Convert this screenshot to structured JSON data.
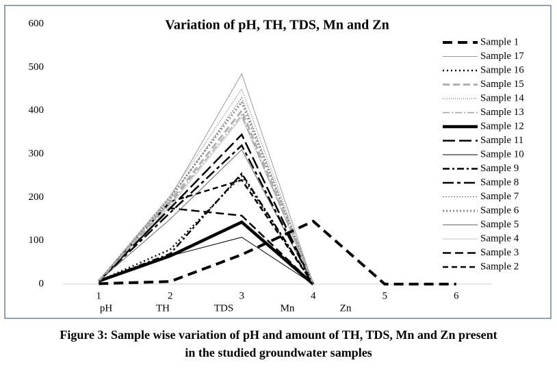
{
  "chart_data": {
    "type": "line",
    "title": "Variation of pH, TH, TDS, Mn and Zn",
    "categories": [
      "1",
      "2",
      "3",
      "4",
      "5",
      "6"
    ],
    "secondary_labels": [
      "pH",
      "TH",
      "TDS",
      "Mn",
      "Zn"
    ],
    "ylim": [
      0,
      600
    ],
    "yticks": [
      0,
      100,
      200,
      300,
      400,
      500,
      600
    ],
    "caption": [
      "Figure 3: Sample wise variation of pH and amount of TH, TDS, Mn and Zn present",
      "in the studied groundwater samples"
    ],
    "series": [
      {
        "name": "Sample 1",
        "color": "#000000",
        "width": 4,
        "dash": "14 8",
        "values": [
          1,
          6,
          68,
          145,
          0,
          0
        ]
      },
      {
        "name": "Sample 17",
        "color": "#999999",
        "width": 1,
        "dash": "",
        "values": [
          7,
          200,
          485,
          0,
          null,
          null
        ]
      },
      {
        "name": "Sample 16",
        "color": "#000000",
        "width": 2.5,
        "dash": "2 4",
        "values": [
          7,
          80,
          250,
          0,
          null,
          null
        ]
      },
      {
        "name": "Sample 15",
        "color": "#b0b0b0",
        "width": 3,
        "dash": "10 5",
        "values": [
          7,
          190,
          400,
          0,
          null,
          null
        ]
      },
      {
        "name": "Sample 14",
        "color": "#555555",
        "width": 1,
        "dash": "1 2",
        "values": [
          7,
          205,
          450,
          0,
          null,
          null
        ]
      },
      {
        "name": "Sample 13",
        "color": "#a0a0a0",
        "width": 1.5,
        "dash": "10 3 2 3",
        "values": [
          7,
          185,
          390,
          0,
          null,
          null
        ]
      },
      {
        "name": "Sample 12",
        "color": "#000000",
        "width": 4.5,
        "dash": "",
        "values": [
          7,
          65,
          143,
          0,
          null,
          null
        ]
      },
      {
        "name": "Sample 11",
        "color": "#000000",
        "width": 2.5,
        "dash": "18 6",
        "values": [
          7,
          175,
          345,
          0,
          null,
          null
        ]
      },
      {
        "name": "Sample 10",
        "color": "#000000",
        "width": 1,
        "dash": "",
        "values": [
          7,
          65,
          108,
          0,
          null,
          null
        ]
      },
      {
        "name": "Sample 9",
        "color": "#000000",
        "width": 2.5,
        "dash": "10 4 3 4",
        "values": [
          7,
          70,
          255,
          0,
          null,
          null
        ]
      },
      {
        "name": "Sample 8",
        "color": "#000000",
        "width": 2.5,
        "dash": "16 5 5 5",
        "values": [
          7,
          165,
          320,
          0,
          null,
          null
        ]
      },
      {
        "name": "Sample 7",
        "color": "#666666",
        "width": 1,
        "dash": "2 2",
        "values": [
          7,
          195,
          430,
          0,
          null,
          null
        ]
      },
      {
        "name": "Sample 6",
        "color": "#888888",
        "width": 3,
        "dash": "2 3",
        "values": [
          7,
          200,
          420,
          0,
          null,
          null
        ]
      },
      {
        "name": "Sample 5",
        "color": "#666666",
        "width": 1,
        "dash": "",
        "values": [
          7,
          150,
          310,
          0,
          null,
          null
        ]
      },
      {
        "name": "Sample 4",
        "color": "#c0c0c0",
        "width": 1,
        "dash": "",
        "values": [
          7,
          180,
          385,
          0,
          null,
          null
        ]
      },
      {
        "name": "Sample 3",
        "color": "#000000",
        "width": 2.5,
        "dash": "12 6",
        "values": [
          7,
          175,
          158,
          0,
          null,
          null
        ]
      },
      {
        "name": "Sample 2",
        "color": "#000000",
        "width": 2.5,
        "dash": "8 5",
        "values": [
          7,
          190,
          240,
          0,
          null,
          null
        ]
      }
    ]
  }
}
